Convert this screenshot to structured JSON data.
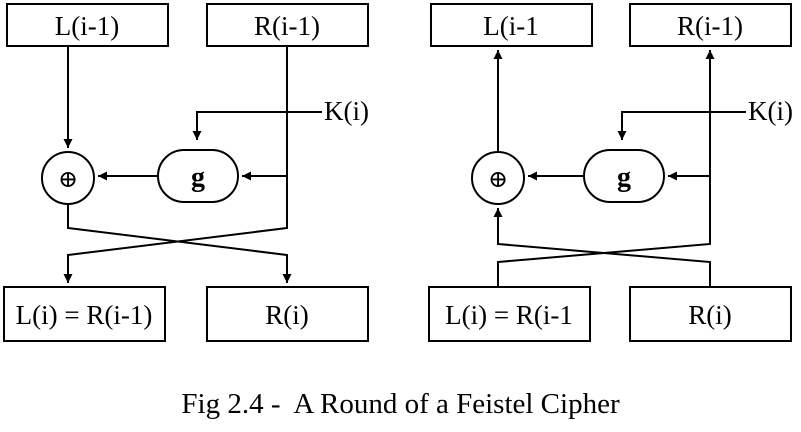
{
  "encrypt": {
    "top_left": "L(i-1)",
    "top_right": "R(i-1)",
    "key": "K(i)",
    "xor_symbol": "⊕",
    "function": "g",
    "bottom_left": "L(i) = R(i-1)",
    "bottom_right": "R(i)"
  },
  "decrypt": {
    "top_left": "L(i-1",
    "top_right": "R(i-1)",
    "key": "K(i)",
    "xor_symbol": "⊕",
    "function": "g",
    "bottom_left": "L(i) = R(i-1",
    "bottom_right": "R(i)"
  },
  "caption": "Fig 2.4 -  A Round of a Feistel Cipher"
}
